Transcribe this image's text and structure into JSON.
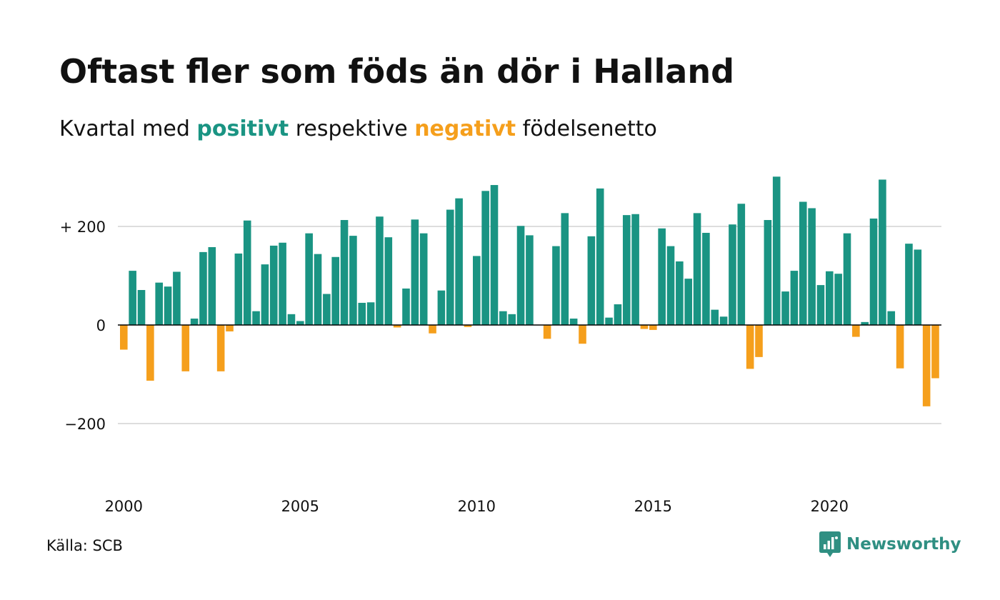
{
  "header": {
    "title": "Oftast fler som föds än dör i Halland",
    "subtitle_before": "Kvartal med ",
    "subtitle_positive": "positivt",
    "subtitle_middle": " respektive ",
    "subtitle_negative": "negativt",
    "subtitle_after": " födelsenetto"
  },
  "footer": {
    "source": "Källa: SCB",
    "brand": "Newsworthy",
    "brand_icon": "bar-chart-speech-bubble-icon"
  },
  "colors": {
    "positive": "#1a9483",
    "negative": "#f59f1c",
    "brand": "#2f8f82",
    "grid": "#dddddd",
    "zero_line": "#000000"
  },
  "chart_data": {
    "type": "bar",
    "x_start": "2000 Q1",
    "period": "quarter",
    "ylim": [
      -320,
      320
    ],
    "y_ticks": [
      {
        "value": 200,
        "label": "+ 200"
      },
      {
        "value": 0,
        "label": "0"
      },
      {
        "value": -200,
        "label": "−200"
      }
    ],
    "x_ticks": [
      {
        "index": 0,
        "label": "2000"
      },
      {
        "index": 20,
        "label": "2005"
      },
      {
        "index": 40,
        "label": "2010"
      },
      {
        "index": 60,
        "label": "2015"
      },
      {
        "index": 80,
        "label": "2020"
      }
    ],
    "grid": true,
    "values": [
      -50,
      110,
      71,
      -113,
      86,
      78,
      108,
      -94,
      13,
      148,
      158,
      -94,
      -13,
      145,
      212,
      28,
      123,
      161,
      167,
      22,
      8,
      186,
      144,
      63,
      138,
      213,
      181,
      45,
      46,
      220,
      178,
      -5,
      74,
      214,
      186,
      -17,
      70,
      234,
      257,
      -4,
      140,
      272,
      284,
      28,
      22,
      201,
      182,
      0,
      -28,
      160,
      227,
      13,
      -38,
      180,
      277,
      15,
      42,
      223,
      225,
      -8,
      -10,
      196,
      160,
      129,
      94,
      227,
      187,
      31,
      17,
      204,
      246,
      -89,
      -65,
      213,
      301,
      68,
      110,
      250,
      237,
      81,
      109,
      104,
      186,
      -24,
      6,
      216,
      295,
      28,
      -88,
      165,
      153,
      -165,
      -108
    ]
  }
}
